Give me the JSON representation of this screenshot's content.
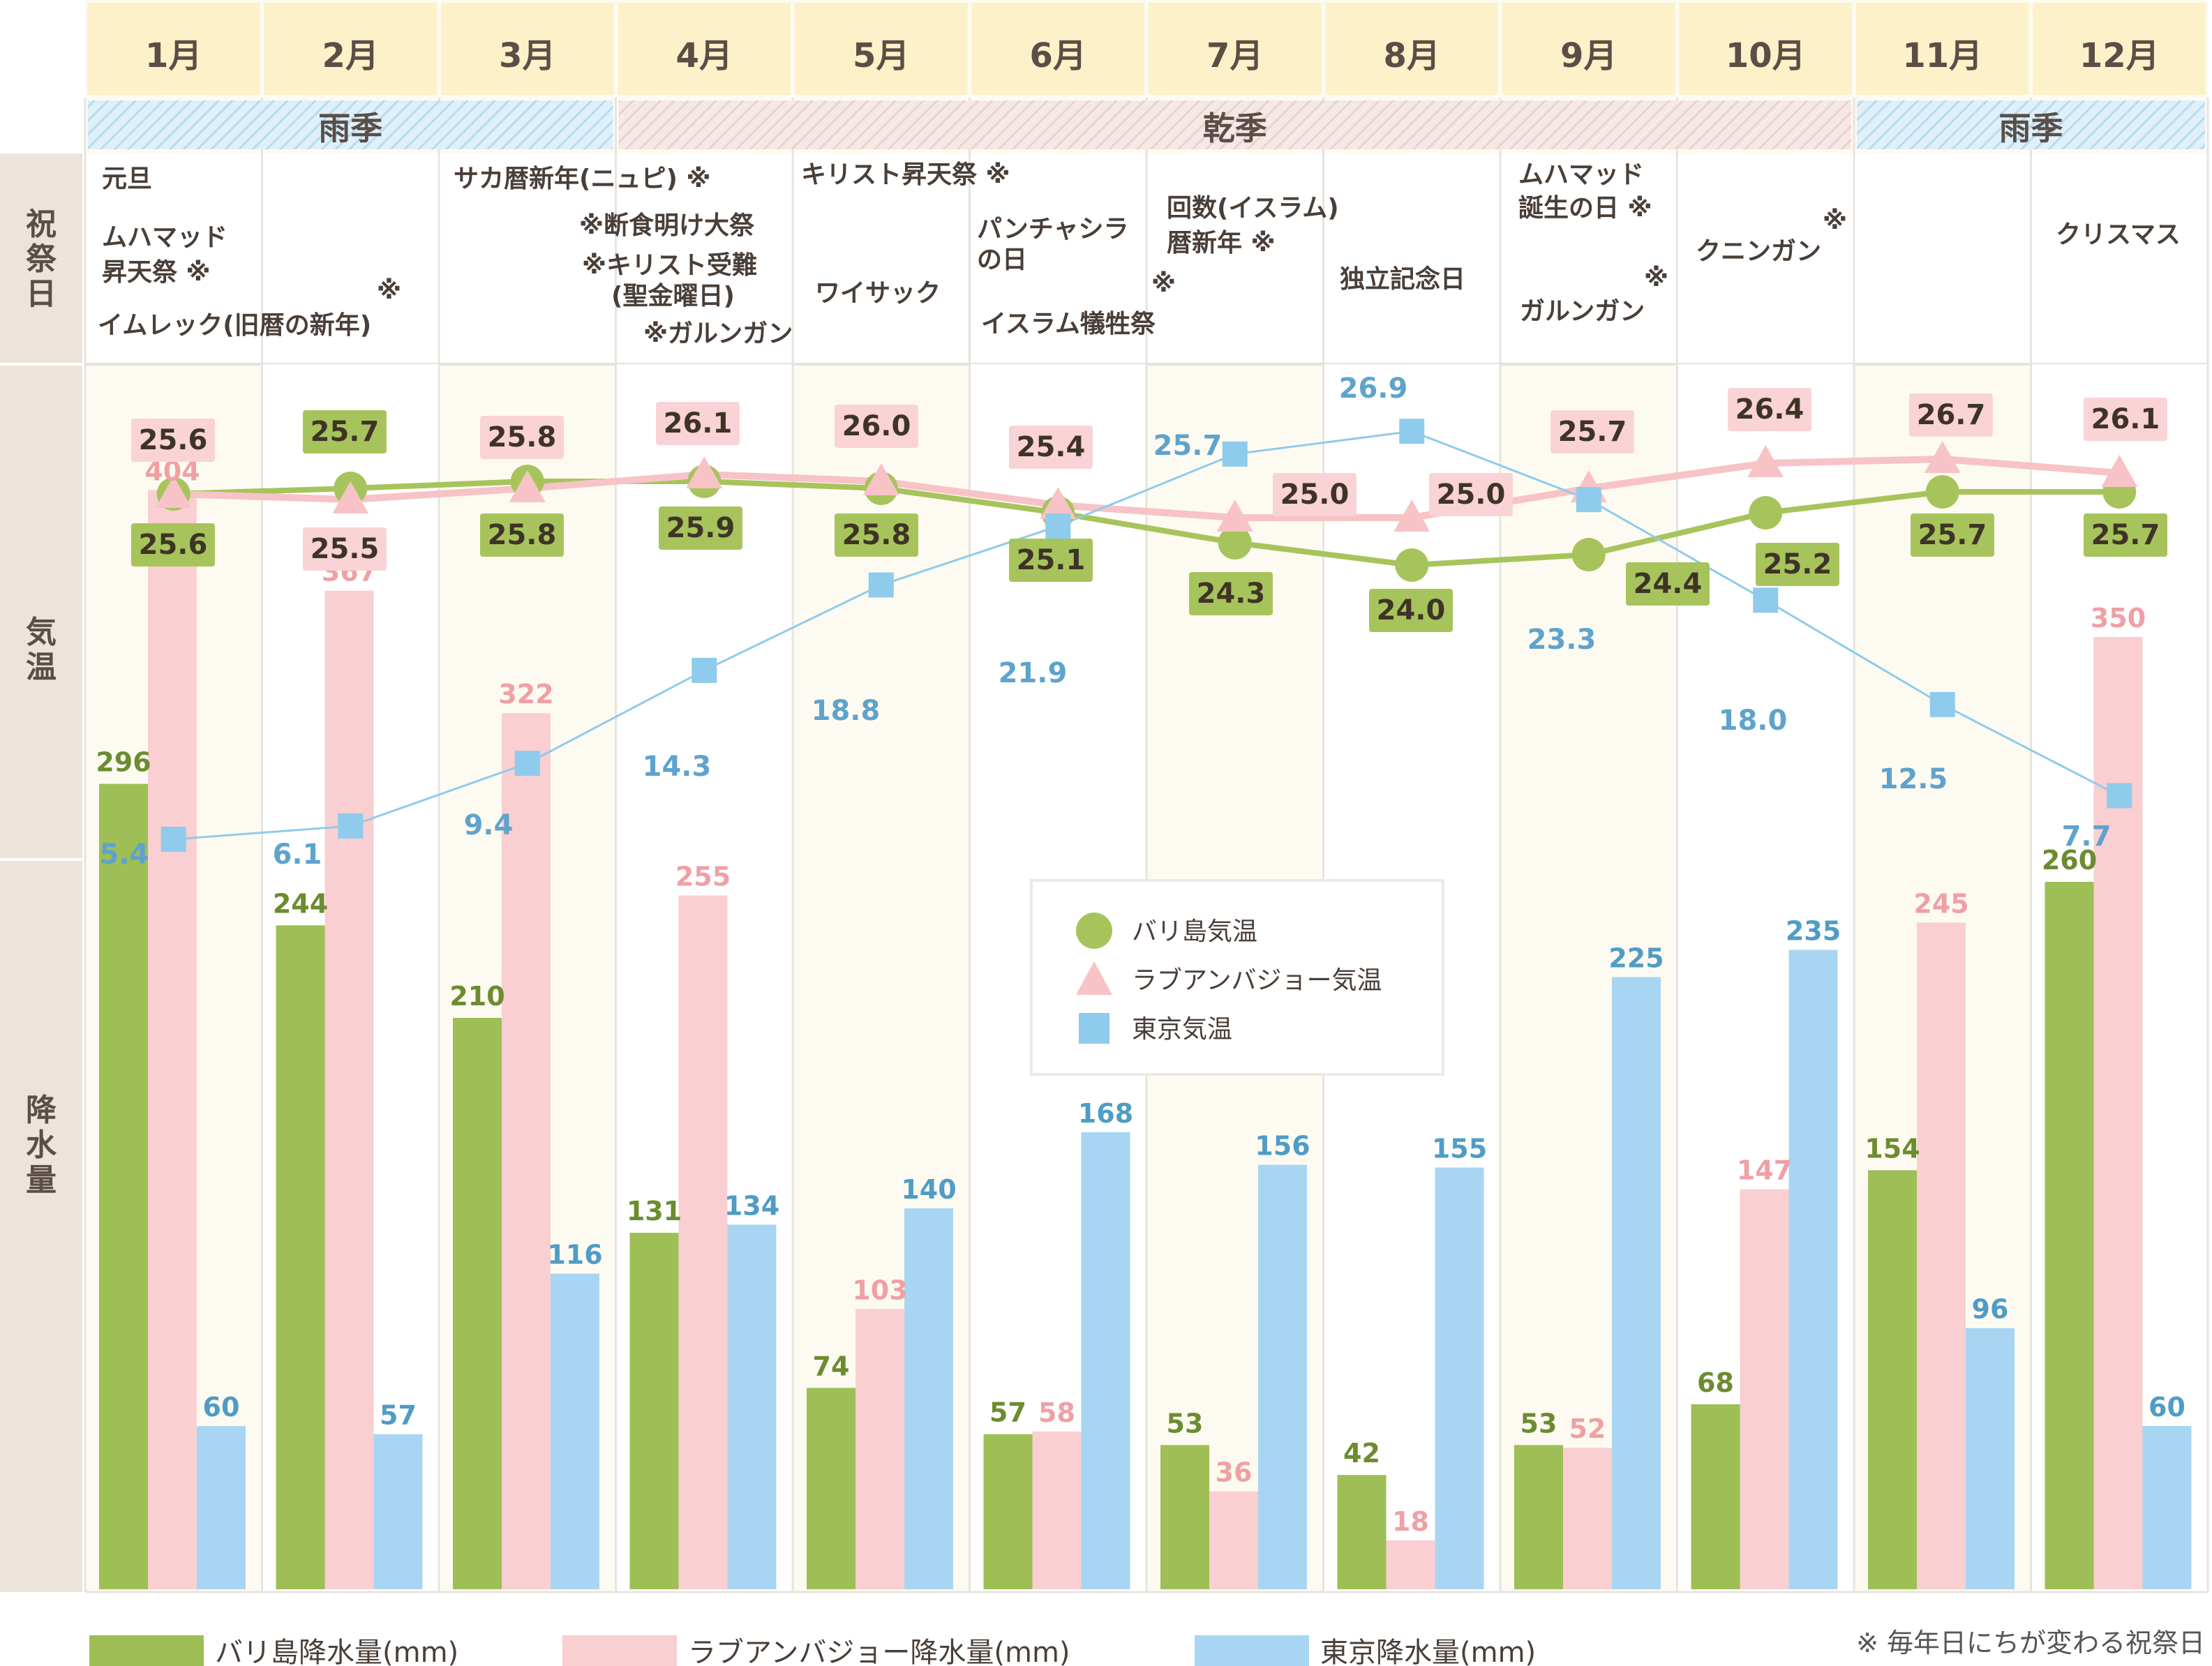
{
  "months": [
    "1月",
    "2月",
    "3月",
    "4月",
    "5月",
    "6月",
    "7月",
    "8月",
    "9月",
    "10月",
    "11月",
    "12月"
  ],
  "row_labels": {
    "holidays": "祝祭日",
    "temperature": "気温",
    "rainfall": "降水量"
  },
  "seasons": [
    {
      "label": "雨季",
      "from": 0,
      "to": 2,
      "kind": "rain"
    },
    {
      "label": "乾季",
      "from": 3,
      "to": 9,
      "kind": "dry"
    },
    {
      "label": "雨季",
      "from": 10,
      "to": 11,
      "kind": "rain"
    }
  ],
  "holidays": [
    [
      "元旦",
      "ムハマッド",
      "昇天祭 ※",
      "イムレック(旧暦の新年)"
    ],
    [
      "※"
    ],
    [
      "サカ暦新年(ニュピ) ※"
    ],
    [
      "※断食明け大祭",
      "※キリスト受難",
      "(聖金曜日)",
      "※ガルンガン"
    ],
    [
      "キリスト昇天祭 ※",
      "ワイサック"
    ],
    [
      "パンチャシラ",
      "の日",
      "※",
      "イスラム犠牲祭"
    ],
    [
      "回数(イスラム)",
      "暦新年 ※"
    ],
    [
      "独立記念日"
    ],
    [
      "ムハマッド",
      "誕生の日 ※",
      "※",
      "ガルンガン"
    ],
    [
      "※",
      "クニンガン"
    ],
    [],
    [
      "クリスマス"
    ]
  ],
  "legend_inner": [
    {
      "label": "バリ島気温",
      "shape": "circle",
      "color": "#a7c45c"
    },
    {
      "label": "ラブアンバジョー気温",
      "shape": "triangle",
      "color": "#f7c3c7"
    },
    {
      "label": "東京気温",
      "shape": "square",
      "color": "#8fcbec"
    }
  ],
  "legend_bottom": [
    {
      "label": "バリ島降水量(mm)",
      "color": "#9dbf55"
    },
    {
      "label": "ラブアンバジョー降水量(mm)",
      "color": "#f9cfd1"
    },
    {
      "label": "東京降水量(mm)",
      "color": "#a8d6f2"
    }
  ],
  "footnote": "※ 毎年日にちが変わる祝祭日",
  "chart_data": {
    "type": "bar",
    "categories": [
      "1月",
      "2月",
      "3月",
      "4月",
      "5月",
      "6月",
      "7月",
      "8月",
      "9月",
      "10月",
      "11月",
      "12月"
    ],
    "series": [
      {
        "name": "バリ島降水量(mm)",
        "values": [
          296,
          244,
          210,
          131,
          74,
          57,
          53,
          42,
          53,
          68,
          154,
          260
        ],
        "color": "#9dbf55"
      },
      {
        "name": "ラブアンバジョー降水量(mm)",
        "values": [
          404,
          367,
          322,
          255,
          103,
          58,
          36,
          18,
          52,
          147,
          245,
          350
        ],
        "color": "#f9cfd1"
      },
      {
        "name": "東京降水量(mm)",
        "values": [
          60,
          57,
          116,
          134,
          140,
          168,
          156,
          155,
          225,
          235,
          96,
          60
        ],
        "color": "#a8d6f2"
      }
    ],
    "lines": [
      {
        "name": "バリ島気温",
        "values": [
          25.6,
          25.7,
          25.8,
          25.9,
          25.8,
          25.1,
          24.3,
          24.0,
          24.4,
          25.2,
          25.7,
          25.7
        ],
        "color": "#a7c45c"
      },
      {
        "name": "ラブアンバジョー気温",
        "values": [
          25.6,
          25.5,
          25.8,
          26.1,
          26.0,
          25.4,
          25.0,
          25.0,
          25.7,
          26.4,
          26.7,
          26.1
        ],
        "color": "#f7c3c7"
      },
      {
        "name": "東京気温",
        "values": [
          5.4,
          6.1,
          9.4,
          14.3,
          18.8,
          21.9,
          25.7,
          26.9,
          23.3,
          18.0,
          12.5,
          7.7
        ],
        "color": "#8fcbec"
      }
    ]
  }
}
